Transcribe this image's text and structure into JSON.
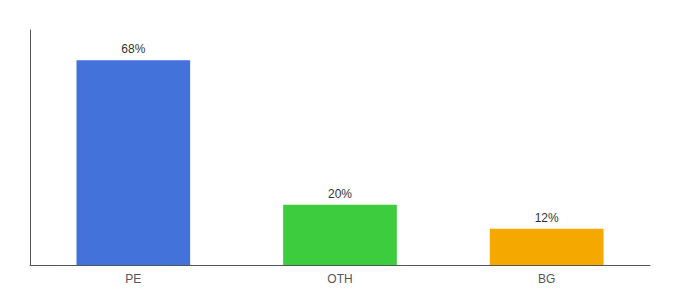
{
  "chart_data": {
    "type": "bar",
    "categories": [
      "PE",
      "OTH",
      "BG"
    ],
    "values": [
      68,
      20,
      12
    ],
    "value_labels": [
      "68%",
      "20%",
      "12%"
    ],
    "colors": [
      "#4472db",
      "#3dcc3d",
      "#f5a800"
    ],
    "ylim": [
      0,
      78
    ],
    "grid": false,
    "data_labels": true,
    "tick_labels": "x"
  }
}
